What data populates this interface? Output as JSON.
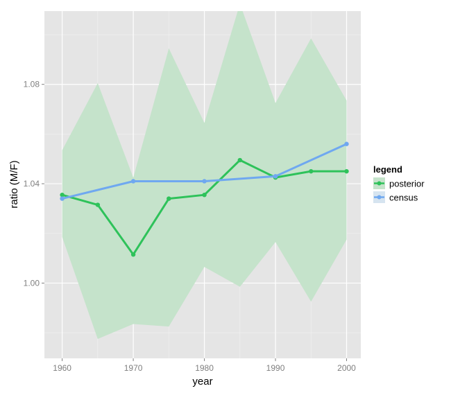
{
  "chart_data": {
    "type": "line",
    "xlabel": "year",
    "ylabel": "ratio (M/F)",
    "xlim": [
      1957.5,
      2002
    ],
    "ylim": [
      0.9697,
      1.1095
    ],
    "x_ticks": [
      1960,
      1970,
      1980,
      1990,
      2000
    ],
    "x_tick_labels": [
      "1960",
      "1970",
      "1980",
      "1990",
      "2000"
    ],
    "y_ticks": [
      1.0,
      1.04,
      1.08
    ],
    "y_tick_labels": [
      "1.00",
      "1.04",
      "1.08"
    ],
    "grid": true,
    "legend": {
      "title": "legend",
      "position": "right",
      "entries": [
        "posterior",
        "census"
      ]
    },
    "ribbon": {
      "series": "posterior",
      "x": [
        1960,
        1965,
        1970,
        1975,
        1980,
        1985,
        1990,
        1995,
        2000
      ],
      "upper": [
        1.0535,
        1.0805,
        1.0425,
        1.0945,
        1.0645,
        1.1125,
        1.0725,
        1.0985,
        1.0735
      ],
      "lower": [
        1.0185,
        0.9775,
        0.9835,
        0.9825,
        1.0065,
        0.9985,
        1.0165,
        0.9925,
        1.0175
      ]
    },
    "series": [
      {
        "name": "posterior",
        "color": "#2ec25a",
        "x": [
          1960,
          1965,
          1970,
          1975,
          1980,
          1985,
          1990,
          1995,
          2000
        ],
        "values": [
          1.0355,
          1.0315,
          1.0115,
          1.034,
          1.0355,
          1.0495,
          1.0425,
          1.045,
          1.045
        ]
      },
      {
        "name": "census",
        "color": "#6fa8f0",
        "x": [
          1960,
          1970,
          1980,
          1990,
          2000
        ],
        "values": [
          1.034,
          1.041,
          1.041,
          1.043,
          1.056
        ]
      }
    ],
    "colors": {
      "panel": "#e5e5e5",
      "grid_major": "#ffffff",
      "grid_minor": "#f2f2f2",
      "ribbon": "#c5e3cb"
    }
  }
}
